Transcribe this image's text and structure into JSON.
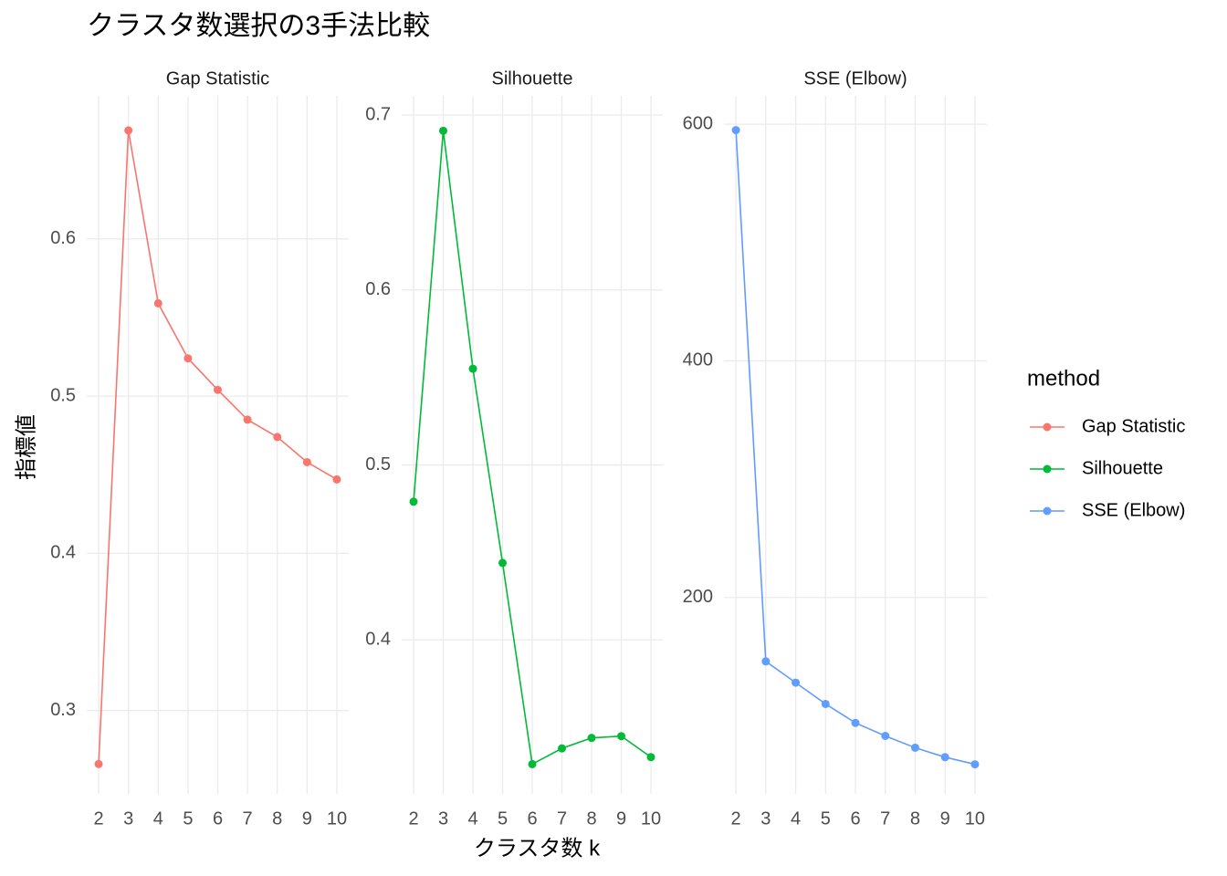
{
  "title": "クラスタ数選択の3手法比較",
  "x_label": "クラスタ数 k",
  "y_label": "指標値",
  "legend_title": "method",
  "chart_data": [
    {
      "type": "line",
      "title": "Gap Statistic",
      "x": [
        2,
        3,
        4,
        5,
        6,
        7,
        8,
        9,
        10
      ],
      "xlim": [
        1.6,
        10.4
      ],
      "xticks": [
        2,
        3,
        4,
        5,
        6,
        7,
        8,
        9,
        10
      ],
      "ylim": [
        0.247,
        0.691
      ],
      "yticks": [
        0.3,
        0.4,
        0.5,
        0.6
      ],
      "grid": true,
      "series": [
        {
          "name": "Gap Statistic",
          "color": "#F8766D",
          "values": [
            0.266,
            0.669,
            0.559,
            0.524,
            0.504,
            0.485,
            0.474,
            0.458,
            0.447
          ]
        }
      ]
    },
    {
      "type": "line",
      "title": "Silhouette",
      "x": [
        2,
        3,
        4,
        5,
        6,
        7,
        8,
        9,
        10
      ],
      "xlim": [
        1.6,
        10.4
      ],
      "xticks": [
        2,
        3,
        4,
        5,
        6,
        7,
        8,
        9,
        10
      ],
      "ylim": [
        0.312,
        0.711
      ],
      "yticks": [
        0.4,
        0.5,
        0.6,
        0.7
      ],
      "grid": true,
      "series": [
        {
          "name": "Silhouette",
          "color": "#00BA38",
          "values": [
            0.479,
            0.691,
            0.555,
            0.444,
            0.329,
            0.338,
            0.344,
            0.345,
            0.333
          ]
        }
      ]
    },
    {
      "type": "line",
      "title": "SSE (Elbow)",
      "x": [
        2,
        3,
        4,
        5,
        6,
        7,
        8,
        9,
        10
      ],
      "xlim": [
        1.6,
        10.4
      ],
      "xticks": [
        2,
        3,
        4,
        5,
        6,
        7,
        8,
        9,
        10
      ],
      "ylim": [
        34,
        624
      ],
      "yticks": [
        200,
        400,
        600
      ],
      "grid": true,
      "series": [
        {
          "name": "SSE (Elbow)",
          "color": "#619CFF",
          "values": [
            595,
            146,
            128,
            110,
            94,
            83,
            73,
            65,
            59
          ]
        }
      ]
    }
  ]
}
